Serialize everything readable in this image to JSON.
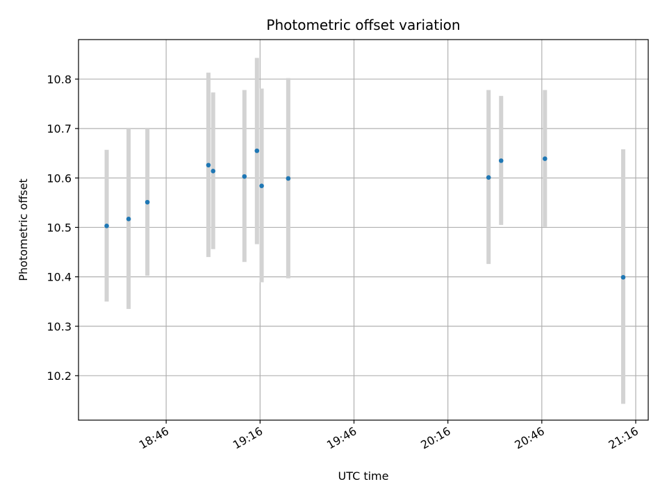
{
  "chart_data": {
    "type": "scatter",
    "title": "Photometric offset variation",
    "xlabel": "UTC time",
    "ylabel": "Photometric offset",
    "grid": true,
    "xlim": [
      "18:18",
      "21:20"
    ],
    "ylim": [
      10.11,
      10.88
    ],
    "xticks": [
      "18:46",
      "19:16",
      "19:46",
      "20:16",
      "20:46",
      "21:16"
    ],
    "yticks": [
      10.2,
      10.3,
      10.4,
      10.5,
      10.6,
      10.7,
      10.8
    ],
    "point_color": "#1f77b4",
    "errorbar_color": "#d3d3d3",
    "points": [
      {
        "x": "18:27",
        "y": 10.503,
        "lo": 10.35,
        "hi": 10.657
      },
      {
        "x": "18:34",
        "y": 10.517,
        "lo": 10.335,
        "hi": 10.7
      },
      {
        "x": "18:40",
        "y": 10.551,
        "lo": 10.402,
        "hi": 10.7
      },
      {
        "x": "18:59.5",
        "y": 10.626,
        "lo": 10.44,
        "hi": 10.813
      },
      {
        "x": "19:01",
        "y": 10.614,
        "lo": 10.456,
        "hi": 10.773
      },
      {
        "x": "19:11",
        "y": 10.603,
        "lo": 10.43,
        "hi": 10.778
      },
      {
        "x": "19:15",
        "y": 10.655,
        "lo": 10.466,
        "hi": 10.843
      },
      {
        "x": "19:16.5",
        "y": 10.584,
        "lo": 10.389,
        "hi": 10.781
      },
      {
        "x": "19:25",
        "y": 10.599,
        "lo": 10.397,
        "hi": 10.802
      },
      {
        "x": "20:29",
        "y": 10.601,
        "lo": 10.426,
        "hi": 10.778
      },
      {
        "x": "20:33",
        "y": 10.635,
        "lo": 10.505,
        "hi": 10.766
      },
      {
        "x": "20:47",
        "y": 10.639,
        "lo": 10.501,
        "hi": 10.778
      },
      {
        "x": "21:12",
        "y": 10.399,
        "lo": 10.143,
        "hi": 10.658
      }
    ]
  }
}
